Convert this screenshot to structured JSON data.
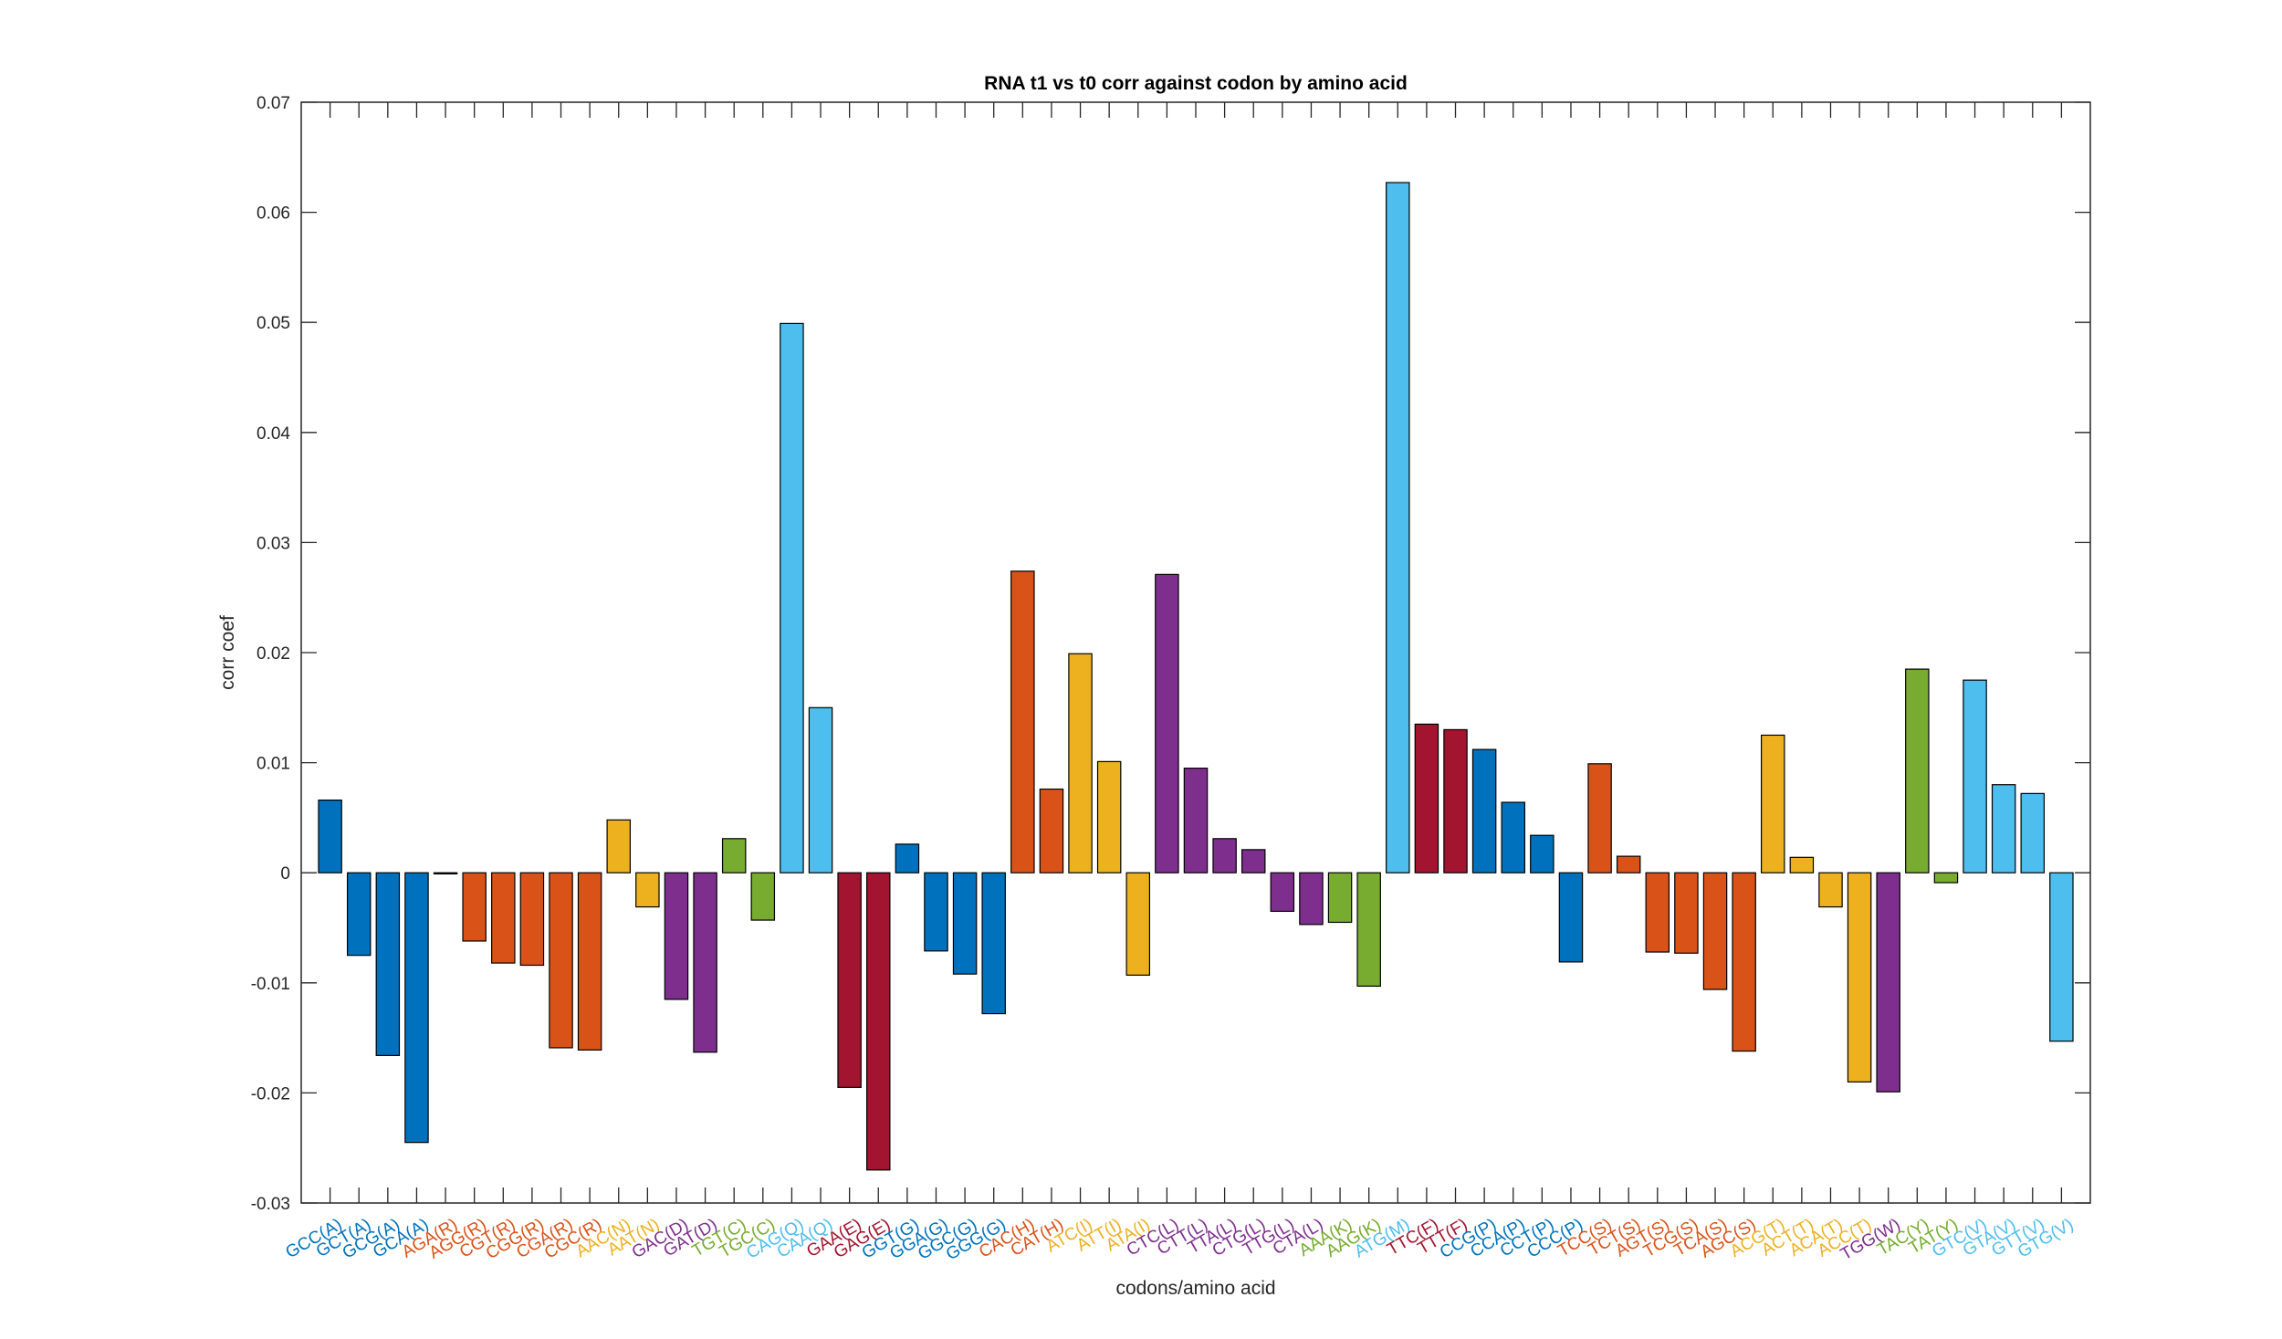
{
  "chart_data": {
    "type": "bar",
    "title": "RNA t1 vs t0 corr against codon by amino acid",
    "xlabel": "codons/amino acid",
    "ylabel": "corr coef",
    "ylim": [
      -0.03,
      0.07
    ],
    "yticks": [
      "-0.03",
      "-0.02",
      "-0.01",
      "0",
      "0.01",
      "0.02",
      "0.03",
      "0.04",
      "0.05",
      "0.06",
      "0.07"
    ],
    "grid": false,
    "categories": [
      "GCC(A)",
      "GCT(A)",
      "GCG(A)",
      "GCA(A)",
      "AGA(R)",
      "AGG(R)",
      "CGT(R)",
      "CGG(R)",
      "CGA(R)",
      "CGC(R)",
      "AAC(N)",
      "AAT(N)",
      "GAC(D)",
      "GAT(D)",
      "TGT(C)",
      "TGC(C)",
      "CAG(Q)",
      "CAA(Q)",
      "GAA(E)",
      "GAG(E)",
      "GGT(G)",
      "GGA(G)",
      "GGC(G)",
      "GGG(G)",
      "CAC(H)",
      "CAT(H)",
      "ATC(I)",
      "ATT(I)",
      "ATA(I)",
      "CTC(L)",
      "CTT(L)",
      "TTA(L)",
      "CTG(L)",
      "TTG(L)",
      "CTA(L)",
      "AAA(K)",
      "AAG(K)",
      "ATG(M)",
      "TTC(F)",
      "TTT(F)",
      "CCG(P)",
      "CCA(P)",
      "CCT(P)",
      "CCC(P)",
      "TCC(S)",
      "TCT(S)",
      "AGT(S)",
      "TCG(S)",
      "TCA(S)",
      "AGC(S)",
      "ACG(T)",
      "ACT(T)",
      "ACA(T)",
      "ACC(T)",
      "TGG(W)",
      "TAC(Y)",
      "TAT(Y)",
      "GTC(V)",
      "GTA(V)",
      "GTT(V)",
      "GTG(V)"
    ],
    "values": [
      0.0066,
      -0.0075,
      -0.0166,
      -0.0245,
      -0.0001,
      -0.0062,
      -0.0082,
      -0.0084,
      -0.0159,
      -0.0161,
      0.0048,
      -0.0031,
      -0.0115,
      -0.0163,
      0.0031,
      -0.0043,
      0.0499,
      0.015,
      -0.0195,
      -0.027,
      0.0026,
      -0.0071,
      -0.0092,
      -0.0128,
      0.0274,
      0.0076,
      0.0199,
      0.0101,
      -0.0093,
      0.0271,
      0.0095,
      0.0031,
      0.0021,
      -0.0035,
      -0.0047,
      -0.0045,
      -0.0103,
      0.0627,
      0.0135,
      0.013,
      0.0112,
      0.0064,
      0.0034,
      -0.0081,
      0.0099,
      0.0015,
      -0.0072,
      -0.0073,
      -0.0106,
      -0.0162,
      0.0125,
      0.0014,
      -0.0031,
      -0.019,
      -0.0199,
      0.0185,
      -0.0009,
      0.0175,
      0.008,
      0.0072,
      -0.0153
    ],
    "amino_acid_group": [
      "A",
      "A",
      "A",
      "A",
      "R",
      "R",
      "R",
      "R",
      "R",
      "R",
      "N",
      "N",
      "D",
      "D",
      "C",
      "C",
      "Q",
      "Q",
      "E",
      "E",
      "G",
      "G",
      "G",
      "G",
      "H",
      "H",
      "I",
      "I",
      "I",
      "L",
      "L",
      "L",
      "L",
      "L",
      "L",
      "K",
      "K",
      "M",
      "F",
      "F",
      "P",
      "P",
      "P",
      "P",
      "S",
      "S",
      "S",
      "S",
      "S",
      "S",
      "T",
      "T",
      "T",
      "T",
      "W",
      "Y",
      "Y",
      "V",
      "V",
      "V",
      "V"
    ],
    "group_colors": {
      "A": "#0072BD",
      "R": "#D95319",
      "N": "#EDB120",
      "D": "#7E2F8E",
      "C": "#77AC30",
      "Q": "#4DBEEE",
      "E": "#A2142F",
      "G": "#0072BD",
      "H": "#D95319",
      "I": "#EDB120",
      "L": "#7E2F8E",
      "K": "#77AC30",
      "M": "#4DBEEE",
      "F": "#A2142F",
      "P": "#0072BD",
      "S": "#D95319",
      "T": "#EDB120",
      "W": "#7E2F8E",
      "Y": "#77AC30",
      "V": "#4DBEEE"
    }
  }
}
